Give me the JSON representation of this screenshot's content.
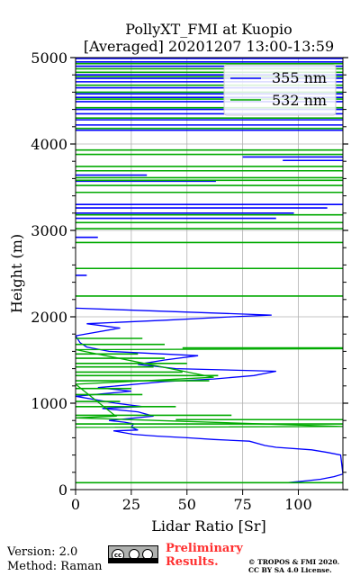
{
  "chart_data": {
    "type": "line",
    "title_line1": "PollyXT_FMI at Kuopio",
    "title_line2": "[Averaged] 20201207 13:00-13:59",
    "xlabel": "Lidar Ratio [Sr]",
    "ylabel": "Height (m)",
    "xlim": [
      0,
      120
    ],
    "ylim": [
      0,
      5000
    ],
    "xticks": [
      "0",
      "25",
      "50",
      "75",
      "100"
    ],
    "xtick_values": [
      0,
      25,
      50,
      75,
      100
    ],
    "yticks": [
      "0",
      "1000",
      "2000",
      "3000",
      "4000",
      "5000"
    ],
    "ytick_values": [
      0,
      1000,
      2000,
      3000,
      4000,
      5000
    ],
    "grid": true,
    "legend_position": "top-right",
    "series": [
      {
        "name": "355 nm",
        "color": "#0000ff",
        "profile": [
          [
            95,
            80
          ],
          [
            103,
            100
          ],
          [
            110,
            120
          ],
          [
            116,
            150
          ],
          [
            120,
            180
          ],
          [
            119,
            400
          ],
          [
            113,
            430
          ],
          [
            106,
            460
          ],
          [
            90,
            490
          ],
          [
            85,
            510
          ],
          [
            78,
            560
          ],
          [
            62,
            580
          ],
          [
            50,
            600
          ],
          [
            36,
            620
          ],
          [
            26,
            640
          ],
          [
            17,
            680
          ],
          [
            28,
            690
          ],
          [
            25,
            720
          ],
          [
            26,
            760
          ],
          [
            22,
            780
          ],
          [
            15,
            800
          ],
          [
            35,
            850
          ],
          [
            28,
            900
          ],
          [
            12,
            940
          ],
          [
            30,
            960
          ],
          [
            18,
            1000
          ],
          [
            0,
            1080
          ],
          [
            25,
            1140
          ],
          [
            10,
            1180
          ],
          [
            40,
            1250
          ],
          [
            62,
            1280
          ],
          [
            80,
            1320
          ],
          [
            90,
            1370
          ],
          [
            45,
            1400
          ],
          [
            28,
            1450
          ],
          [
            40,
            1500
          ],
          [
            55,
            1550
          ],
          [
            15,
            1600
          ],
          [
            5,
            1650
          ],
          [
            2,
            1700
          ],
          [
            0,
            1780
          ],
          [
            20,
            1870
          ],
          [
            5,
            1920
          ],
          [
            40,
            1960
          ],
          [
            70,
            2000
          ],
          [
            88,
            2020
          ],
          [
            55,
            2050
          ],
          [
            0,
            2100
          ]
        ],
        "layers": [
          [
            0,
            10,
            2920
          ],
          [
            0,
            5,
            2480
          ],
          [
            0,
            90,
            3140
          ],
          [
            0,
            98,
            3200
          ],
          [
            0,
            113,
            3260
          ],
          [
            0,
            120,
            3300
          ],
          [
            0,
            63,
            3570
          ],
          [
            0,
            32,
            3640
          ],
          [
            0,
            40,
            3690
          ],
          [
            75,
            120,
            3850
          ],
          [
            93,
            120,
            3810
          ],
          [
            0,
            120,
            4160
          ],
          [
            0,
            120,
            4220
          ],
          [
            0,
            120,
            4280
          ],
          [
            0,
            120,
            4350
          ],
          [
            0,
            120,
            4400
          ],
          [
            0,
            120,
            4490
          ],
          [
            0,
            120,
            4540
          ],
          [
            0,
            120,
            4580
          ],
          [
            0,
            120,
            4650
          ],
          [
            0,
            120,
            4720
          ],
          [
            0,
            120,
            4760
          ],
          [
            0,
            120,
            4800
          ],
          [
            0,
            120,
            4900
          ],
          [
            0,
            120,
            4950
          ],
          [
            0,
            120,
            4990
          ]
        ]
      },
      {
        "name": "532 nm",
        "color": "#00aa00",
        "profile": [
          [
            0,
            720
          ],
          [
            120,
            730
          ],
          [
            0,
            830
          ],
          [
            18,
            850
          ],
          [
            0,
            1220
          ],
          [
            62,
            1300
          ],
          [
            0,
            1620
          ],
          [
            120,
            1630
          ]
        ],
        "layers": [
          [
            0,
            120,
            80
          ],
          [
            0,
            120,
            760
          ],
          [
            45,
            120,
            810
          ],
          [
            0,
            70,
            860
          ],
          [
            0,
            45,
            960
          ],
          [
            0,
            20,
            1020
          ],
          [
            0,
            30,
            1100
          ],
          [
            0,
            25,
            1170
          ],
          [
            0,
            60,
            1260
          ],
          [
            0,
            64,
            1320
          ],
          [
            0,
            48,
            1360
          ],
          [
            0,
            35,
            1420
          ],
          [
            0,
            50,
            1460
          ],
          [
            0,
            40,
            1520
          ],
          [
            0,
            28,
            1570
          ],
          [
            48,
            120,
            1640
          ],
          [
            0,
            40,
            1680
          ],
          [
            0,
            30,
            1750
          ],
          [
            0,
            120,
            2240
          ],
          [
            0,
            120,
            2560
          ],
          [
            0,
            120,
            2860
          ],
          [
            0,
            120,
            3020
          ],
          [
            0,
            120,
            3090
          ],
          [
            0,
            120,
            3180
          ],
          [
            0,
            120,
            3440
          ],
          [
            0,
            120,
            3520
          ],
          [
            0,
            120,
            3580
          ],
          [
            0,
            120,
            3610
          ],
          [
            0,
            120,
            3690
          ],
          [
            0,
            120,
            3740
          ],
          [
            0,
            120,
            3880
          ],
          [
            0,
            120,
            3930
          ],
          [
            0,
            120,
            4180
          ],
          [
            0,
            120,
            4300
          ],
          [
            0,
            120,
            4420
          ],
          [
            0,
            120,
            4520
          ],
          [
            0,
            120,
            4600
          ],
          [
            0,
            120,
            4680
          ],
          [
            0,
            120,
            4780
          ],
          [
            0,
            120,
            4830
          ],
          [
            0,
            120,
            4870
          ],
          [
            0,
            120,
            4930
          ]
        ]
      }
    ]
  },
  "footer": {
    "version": "Version: 2.0",
    "method": "Method: Raman",
    "preliminary_line1": "Preliminary",
    "preliminary_line2": "Results.",
    "copyright_line1": "© TROPOS & FMI 2020.",
    "copyright_line2": "CC BY SA 4.0 License.",
    "license_badge": "cc-by-sa-badge"
  }
}
